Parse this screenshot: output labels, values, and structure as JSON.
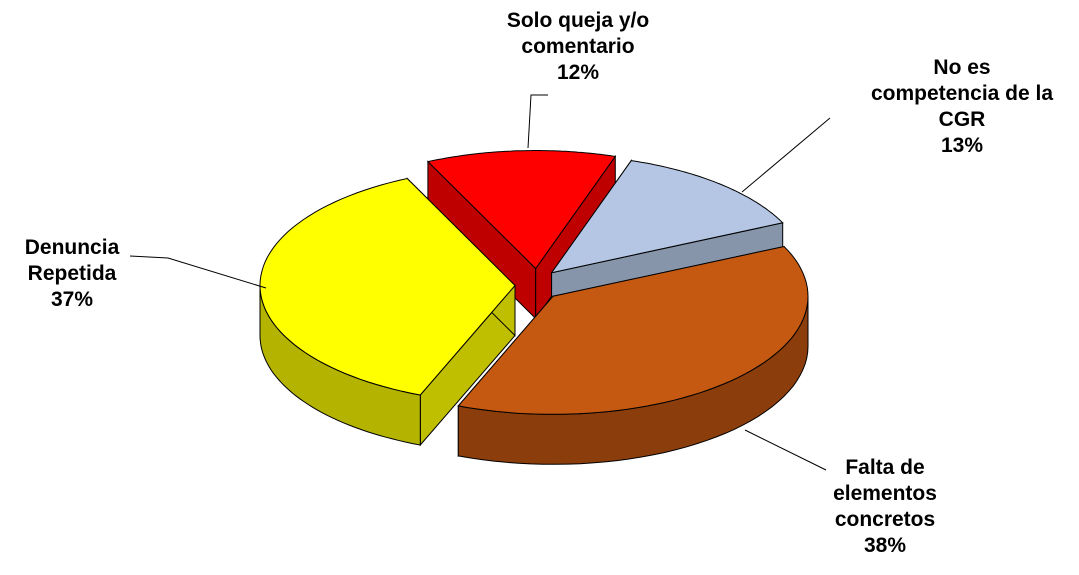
{
  "chart_data": {
    "type": "pie",
    "categories": [
      "Solo queja y/o comentario",
      "No es competencia de la CGR",
      "Falta de elementos concretos",
      "Denuncia Repetida"
    ],
    "values": [
      12,
      13,
      38,
      37
    ],
    "value_labels": [
      "12%",
      "13%",
      "38%",
      "37%"
    ],
    "colors": [
      "#ff0000",
      "#b4c6e4",
      "#c65911",
      "#ffff00"
    ]
  }
}
